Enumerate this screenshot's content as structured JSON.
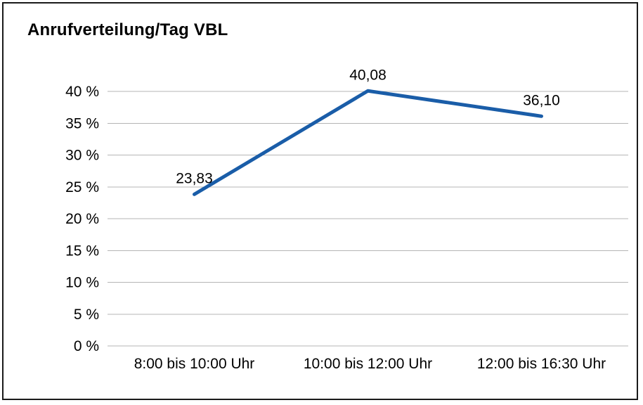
{
  "page": {
    "title": "Anrufverteilung/Tag VBL"
  },
  "chart_data": {
    "type": "line",
    "title": "Anrufverteilung/Tag VBL",
    "categories": [
      "8:00 bis 10:00 Uhr",
      "10:00 bis 12:00 Uhr",
      "12:00 bis 16:30 Uhr"
    ],
    "values": [
      23.83,
      40.08,
      36.1
    ],
    "value_labels": [
      "23,83",
      "40,08",
      "36,10"
    ],
    "ylim": [
      0,
      40
    ],
    "ytick_step": 5,
    "ytick_labels": [
      "0 %",
      "5 %",
      "10 %",
      "15 %",
      "20 %",
      "25 %",
      "30 %",
      "35 %",
      "40 %"
    ],
    "xlabel": "",
    "ylabel": "",
    "grid": true,
    "legend": "none",
    "colors": {
      "line": "#1a5da8",
      "grid": "#b5b5b5",
      "text": "#000000",
      "frame_border": "#1a1a1a",
      "background": "#ffffff"
    }
  }
}
